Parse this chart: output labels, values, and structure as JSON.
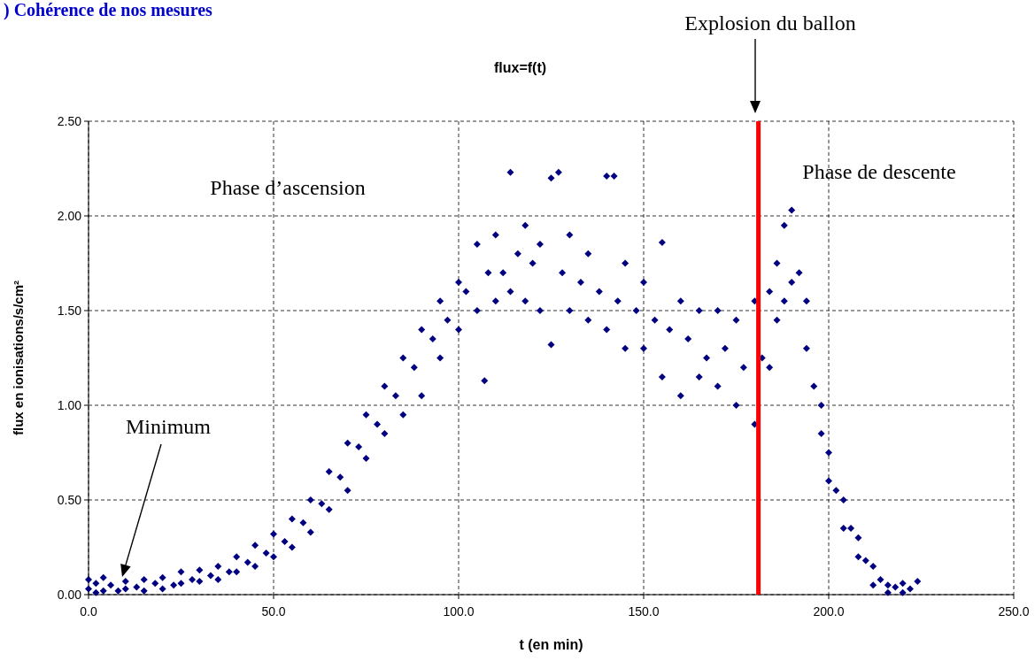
{
  "chart_data": {
    "type": "scatter",
    "title": "flux=f(t)",
    "xlabel": "t (en min)",
    "ylabel": "flux en ionisations/s/cm²",
    "annotations": [
      ") Cohérence de nos mesures",
      "Phase d’ascension",
      "Phase de descente",
      "Minimum",
      "Explosion du ballon"
    ],
    "xlim": [
      0,
      250
    ],
    "xticks": [
      {
        "value": 0,
        "label": "0.0"
      },
      {
        "value": 50,
        "label": "50.0"
      },
      {
        "value": 100,
        "label": "100.0"
      },
      {
        "value": 150,
        "label": "150.0"
      },
      {
        "value": 200,
        "label": "200.0"
      },
      {
        "value": 250,
        "label": "250.0"
      }
    ],
    "ylim": [
      0,
      2.5
    ],
    "yticks": [
      {
        "value": 0,
        "label": "0.00"
      },
      {
        "value": 0.5,
        "label": "0.50"
      },
      {
        "value": 1,
        "label": "1.00"
      },
      {
        "value": 1.5,
        "label": "1.50"
      },
      {
        "value": 2,
        "label": "2.00"
      },
      {
        "value": 2.5,
        "label": "2.50"
      }
    ],
    "grid": true,
    "marker": "diamond",
    "ref_lines": [
      {
        "axis": "x",
        "value": 181,
        "color": "#ff0000"
      }
    ],
    "series": [
      {
        "color": "#000080",
        "x": [
          0,
          0,
          2,
          2,
          4,
          4,
          6,
          8,
          10,
          10,
          13,
          15,
          15,
          18,
          20,
          20,
          23,
          25,
          25,
          28,
          30,
          30,
          33,
          35,
          35,
          38,
          40,
          40,
          43,
          45,
          45,
          48,
          50,
          50,
          53,
          55,
          55,
          58,
          60,
          60,
          63,
          65,
          65,
          68,
          70,
          70,
          73,
          75,
          75,
          78,
          80,
          80,
          83,
          85,
          85,
          88,
          90,
          90,
          93,
          95,
          95,
          97,
          100,
          100,
          102,
          105,
          105,
          107,
          108,
          110,
          110,
          112,
          114,
          114,
          116,
          118,
          118,
          120,
          122,
          122,
          125,
          125,
          127,
          128,
          130,
          130,
          133,
          135,
          135,
          138,
          140,
          140,
          142,
          143,
          145,
          145,
          148,
          150,
          150,
          153,
          155,
          155,
          157,
          160,
          160,
          162,
          165,
          165,
          167,
          170,
          170,
          172,
          175,
          175,
          177,
          180,
          180,
          182,
          184,
          184,
          186,
          186,
          188,
          188,
          190,
          190,
          192,
          194,
          194,
          196,
          198,
          198,
          200,
          200,
          202,
          204,
          204,
          206,
          208,
          208,
          210,
          212,
          212,
          214,
          216,
          216,
          218,
          220,
          220,
          222,
          224
        ],
        "values": [
          0.08,
          0.03,
          0.06,
          0.01,
          0.09,
          0.02,
          0.05,
          0.02,
          0.07,
          0.03,
          0.04,
          0.08,
          0.02,
          0.06,
          0.09,
          0.03,
          0.05,
          0.12,
          0.06,
          0.08,
          0.13,
          0.07,
          0.1,
          0.15,
          0.08,
          0.12,
          0.2,
          0.12,
          0.17,
          0.26,
          0.15,
          0.22,
          0.32,
          0.2,
          0.28,
          0.4,
          0.25,
          0.38,
          0.5,
          0.33,
          0.48,
          0.65,
          0.45,
          0.62,
          0.8,
          0.55,
          0.78,
          0.95,
          0.72,
          0.9,
          1.1,
          0.85,
          1.05,
          1.25,
          0.95,
          1.2,
          1.4,
          1.05,
          1.35,
          1.55,
          1.25,
          1.45,
          1.65,
          1.4,
          1.6,
          1.85,
          1.5,
          1.13,
          1.7,
          1.9,
          1.55,
          1.7,
          2.23,
          1.6,
          1.8,
          1.95,
          1.55,
          1.75,
          1.85,
          1.5,
          2.2,
          1.32,
          2.23,
          1.7,
          1.9,
          1.5,
          1.65,
          1.8,
          1.45,
          1.6,
          2.21,
          1.4,
          2.21,
          1.55,
          1.75,
          1.3,
          1.5,
          1.65,
          1.3,
          1.45,
          1.86,
          1.15,
          1.4,
          1.55,
          1.05,
          1.35,
          1.5,
          1.15,
          1.25,
          1.5,
          1.1,
          1.3,
          1.45,
          1.0,
          1.2,
          1.55,
          0.9,
          1.25,
          1.6,
          1.2,
          1.75,
          1.45,
          1.95,
          1.55,
          2.03,
          1.65,
          1.7,
          1.55,
          1.3,
          1.1,
          1.0,
          0.85,
          0.75,
          0.6,
          0.55,
          0.5,
          0.35,
          0.35,
          0.3,
          0.2,
          0.18,
          0.15,
          0.05,
          0.08,
          0.05,
          0.01,
          0.04,
          0.06,
          0.01,
          0.03,
          0.07
        ]
      }
    ]
  }
}
